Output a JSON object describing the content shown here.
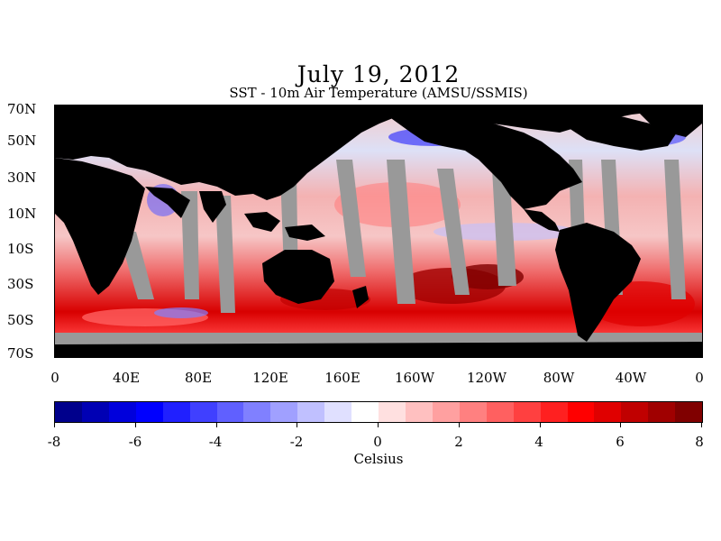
{
  "title": "July 19, 2012",
  "subtitle": "SST - 10m Air Temperature (AMSU/SSMIS)",
  "map": {
    "lat_labels": [
      "70N",
      "50N",
      "30N",
      "10N",
      "10S",
      "30S",
      "50S",
      "70S"
    ],
    "lon_labels": [
      "0",
      "40E",
      "80E",
      "120E",
      "160E",
      "160W",
      "120W",
      "80W",
      "40W",
      "0"
    ],
    "colors": {
      "land": "#000000",
      "no_data": "#999999"
    }
  },
  "colorbar": {
    "min": -8,
    "max": 8,
    "tick_labels": [
      "-8",
      "-6",
      "-4",
      "-2",
      "0",
      "2",
      "4",
      "6",
      "8"
    ],
    "unit_label": "Celsius",
    "colors": [
      "#00008c",
      "#0000b4",
      "#0000dc",
      "#0000ff",
      "#2020ff",
      "#4040ff",
      "#6060ff",
      "#8080ff",
      "#a0a0ff",
      "#c0c0ff",
      "#e0e0ff",
      "#ffffff",
      "#ffe0e0",
      "#ffc0c0",
      "#ffa0a0",
      "#ff8080",
      "#ff6060",
      "#ff4040",
      "#ff2020",
      "#ff0000",
      "#e00000",
      "#c00000",
      "#a00000",
      "#800000"
    ]
  }
}
